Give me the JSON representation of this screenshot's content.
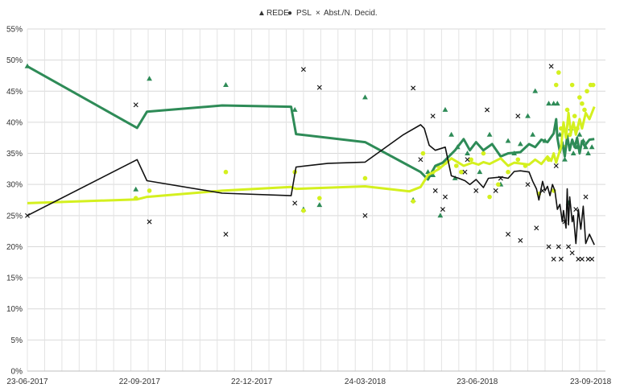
{
  "chart_data": {
    "type": "line",
    "title": "",
    "xlabel": "",
    "ylabel": "",
    "ylim": [
      0,
      55
    ],
    "xlim": [
      "2017-06-23",
      "2018-10-05"
    ],
    "yticks": [
      "0%",
      "5%",
      "10%",
      "15%",
      "20%",
      "25%",
      "30%",
      "35%",
      "40%",
      "45%",
      "50%",
      "55%"
    ],
    "xticks": [
      "23-06-2017",
      "22-09-2017",
      "22-12-2017",
      "24-03-2018",
      "23-06-2018",
      "23-09-2018"
    ],
    "grid": true,
    "legend_position": "top",
    "colors": {
      "REDE": "#2e8b57",
      "PSL": "#d4f01f",
      "Abst": "#111111"
    },
    "series": [
      {
        "name": "REDE",
        "trend": [
          [
            "2017-06-23",
            49.0
          ],
          [
            "2017-09-20",
            39.1
          ],
          [
            "2017-09-28",
            41.7
          ],
          [
            "2017-11-28",
            42.7
          ],
          [
            "2018-01-23",
            42.5
          ],
          [
            "2018-01-27",
            38.1
          ],
          [
            "2018-03-24",
            36.8
          ],
          [
            "2018-05-08",
            32.0
          ],
          [
            "2018-05-14",
            30.8
          ],
          [
            "2018-05-20",
            33.0
          ],
          [
            "2018-05-26",
            33.5
          ],
          [
            "2018-06-05",
            35.5
          ],
          [
            "2018-06-12",
            37.3
          ],
          [
            "2018-06-17",
            35.5
          ],
          [
            "2018-06-22",
            36.8
          ],
          [
            "2018-06-28",
            35.5
          ],
          [
            "2018-07-05",
            36.5
          ],
          [
            "2018-07-12",
            34.5
          ],
          [
            "2018-07-18",
            35.0
          ],
          [
            "2018-07-28",
            35.2
          ],
          [
            "2018-08-04",
            36.5
          ],
          [
            "2018-08-09",
            36.0
          ],
          [
            "2018-08-14",
            37.2
          ],
          [
            "2018-08-19",
            36.8
          ],
          [
            "2018-08-24",
            38.2
          ],
          [
            "2018-08-26",
            40.5
          ],
          [
            "2018-08-27",
            37.5
          ],
          [
            "2018-08-29",
            35.2
          ],
          [
            "2018-08-31",
            36.8
          ],
          [
            "2018-09-02",
            34.5
          ],
          [
            "2018-09-04",
            37.8
          ],
          [
            "2018-09-06",
            35.5
          ],
          [
            "2018-09-08",
            37.2
          ],
          [
            "2018-09-10",
            36.0
          ],
          [
            "2018-09-12",
            37.5
          ],
          [
            "2018-09-14",
            35.0
          ],
          [
            "2018-09-16",
            37.0
          ],
          [
            "2018-09-18",
            36.2
          ],
          [
            "2018-09-22",
            37.2
          ],
          [
            "2018-09-26",
            37.3
          ]
        ],
        "points": [
          [
            "2017-06-23",
            49.0
          ],
          [
            "2017-09-19",
            29.2
          ],
          [
            "2017-09-30",
            47.0
          ],
          [
            "2017-12-01",
            46.0
          ],
          [
            "2018-01-26",
            42.0
          ],
          [
            "2018-02-02",
            26.0
          ],
          [
            "2018-02-15",
            26.7
          ],
          [
            "2018-03-24",
            44.0
          ],
          [
            "2018-05-02",
            27.5
          ],
          [
            "2018-05-14",
            32.0
          ],
          [
            "2018-05-18",
            31.5
          ],
          [
            "2018-05-24",
            25.0
          ],
          [
            "2018-05-28",
            42.0
          ],
          [
            "2018-06-02",
            38.0
          ],
          [
            "2018-06-05",
            31.0
          ],
          [
            "2018-06-07",
            36.0
          ],
          [
            "2018-06-15",
            35.0
          ],
          [
            "2018-06-25",
            32.0
          ],
          [
            "2018-07-03",
            38.0
          ],
          [
            "2018-07-12",
            30.0
          ],
          [
            "2018-07-18",
            37.0
          ],
          [
            "2018-07-23",
            35.0
          ],
          [
            "2018-07-28",
            36.5
          ],
          [
            "2018-08-03",
            41.0
          ],
          [
            "2018-08-07",
            38.0
          ],
          [
            "2018-08-09",
            45.0
          ],
          [
            "2018-08-17",
            37.0
          ],
          [
            "2018-08-20",
            43.0
          ],
          [
            "2018-08-24",
            43.0
          ],
          [
            "2018-08-27",
            43.0
          ],
          [
            "2018-08-29",
            38.0
          ],
          [
            "2018-09-02",
            34.0
          ],
          [
            "2018-09-05",
            27.0
          ],
          [
            "2018-09-07",
            39.0
          ],
          [
            "2018-09-09",
            35.0
          ],
          [
            "2018-09-12",
            36.0
          ],
          [
            "2018-09-14",
            38.0
          ],
          [
            "2018-09-17",
            37.0
          ],
          [
            "2018-09-19",
            36.0
          ],
          [
            "2018-09-21",
            35.0
          ],
          [
            "2018-09-24",
            36.0
          ]
        ]
      },
      {
        "name": "PSL",
        "trend": [
          [
            "2017-06-23",
            27.0
          ],
          [
            "2017-09-20",
            27.6
          ],
          [
            "2017-09-28",
            28.0
          ],
          [
            "2017-11-28",
            29.0
          ],
          [
            "2018-01-23",
            29.6
          ],
          [
            "2018-01-27",
            29.3
          ],
          [
            "2018-03-24",
            29.7
          ],
          [
            "2018-04-29",
            28.9
          ],
          [
            "2018-05-08",
            29.6
          ],
          [
            "2018-05-14",
            31.5
          ],
          [
            "2018-05-23",
            32.5
          ],
          [
            "2018-06-02",
            34.2
          ],
          [
            "2018-06-12",
            33.0
          ],
          [
            "2018-06-19",
            33.5
          ],
          [
            "2018-06-24",
            33.2
          ],
          [
            "2018-06-28",
            33.6
          ],
          [
            "2018-07-03",
            33.3
          ],
          [
            "2018-07-12",
            34.2
          ],
          [
            "2018-07-18",
            33.0
          ],
          [
            "2018-07-23",
            33.5
          ],
          [
            "2018-08-04",
            33.2
          ],
          [
            "2018-08-09",
            34.0
          ],
          [
            "2018-08-14",
            33.3
          ],
          [
            "2018-08-19",
            34.5
          ],
          [
            "2018-08-22",
            33.8
          ],
          [
            "2018-08-24",
            35.0
          ],
          [
            "2018-08-26",
            33.5
          ],
          [
            "2018-08-28",
            34.8
          ],
          [
            "2018-08-30",
            36.0
          ],
          [
            "2018-09-01",
            40.0
          ],
          [
            "2018-09-03",
            37.5
          ],
          [
            "2018-09-05",
            41.5
          ],
          [
            "2018-09-07",
            38.2
          ],
          [
            "2018-09-09",
            40.0
          ],
          [
            "2018-09-11",
            38.0
          ],
          [
            "2018-09-14",
            40.5
          ],
          [
            "2018-09-16",
            39.0
          ],
          [
            "2018-09-19",
            41.5
          ],
          [
            "2018-09-22",
            40.5
          ],
          [
            "2018-09-26",
            42.5
          ]
        ],
        "points": [
          [
            "2017-09-19",
            27.8
          ],
          [
            "2017-09-30",
            29.0
          ],
          [
            "2017-12-01",
            32.0
          ],
          [
            "2018-01-26",
            32.0
          ],
          [
            "2018-02-02",
            25.8
          ],
          [
            "2018-02-15",
            27.8
          ],
          [
            "2018-03-24",
            31.0
          ],
          [
            "2018-05-02",
            27.3
          ],
          [
            "2018-05-10",
            35.0
          ],
          [
            "2018-05-18",
            32.0
          ],
          [
            "2018-05-22",
            33.0
          ],
          [
            "2018-05-28",
            33.5
          ],
          [
            "2018-06-06",
            33.0
          ],
          [
            "2018-06-10",
            32.0
          ],
          [
            "2018-06-18",
            34.0
          ],
          [
            "2018-06-28",
            35.0
          ],
          [
            "2018-07-03",
            28.0
          ],
          [
            "2018-07-10",
            30.0
          ],
          [
            "2018-07-18",
            32.0
          ],
          [
            "2018-07-26",
            34.0
          ],
          [
            "2018-08-01",
            33.0
          ],
          [
            "2018-08-12",
            28.5
          ],
          [
            "2018-08-20",
            34.0
          ],
          [
            "2018-08-24",
            29.0
          ],
          [
            "2018-08-26",
            46.0
          ],
          [
            "2018-08-28",
            48.0
          ],
          [
            "2018-08-30",
            39.0
          ],
          [
            "2018-09-02",
            36.0
          ],
          [
            "2018-09-04",
            42.0
          ],
          [
            "2018-09-06",
            38.0
          ],
          [
            "2018-09-08",
            46.0
          ],
          [
            "2018-09-10",
            41.0
          ],
          [
            "2018-09-12",
            39.0
          ],
          [
            "2018-09-14",
            44.0
          ],
          [
            "2018-09-16",
            43.0
          ],
          [
            "2018-09-18",
            42.0
          ],
          [
            "2018-09-20",
            45.0
          ],
          [
            "2018-09-23",
            46.0
          ],
          [
            "2018-09-25",
            46.0
          ]
        ]
      },
      {
        "name": "Abst./N. Decid.",
        "trend": [
          [
            "2017-06-23",
            25.0
          ],
          [
            "2017-09-20",
            34.0
          ],
          [
            "2017-09-28",
            30.6
          ],
          [
            "2017-11-28",
            28.6
          ],
          [
            "2018-01-23",
            28.2
          ],
          [
            "2018-01-27",
            32.8
          ],
          [
            "2018-02-22",
            33.4
          ],
          [
            "2018-03-24",
            33.6
          ],
          [
            "2018-04-24",
            38.0
          ],
          [
            "2018-05-08",
            39.6
          ],
          [
            "2018-05-11",
            39.0
          ],
          [
            "2018-05-15",
            36.3
          ],
          [
            "2018-05-20",
            35.5
          ],
          [
            "2018-05-28",
            36.0
          ],
          [
            "2018-06-02",
            31.4
          ],
          [
            "2018-06-08",
            31.0
          ],
          [
            "2018-06-13",
            30.6
          ],
          [
            "2018-06-17",
            30.0
          ],
          [
            "2018-06-22",
            30.8
          ],
          [
            "2018-06-28",
            29.5
          ],
          [
            "2018-07-02",
            31.0
          ],
          [
            "2018-07-12",
            31.2
          ],
          [
            "2018-07-18",
            31.0
          ],
          [
            "2018-07-23",
            32.1
          ],
          [
            "2018-07-28",
            32.2
          ],
          [
            "2018-08-04",
            32.0
          ],
          [
            "2018-08-07",
            30.5
          ],
          [
            "2018-08-10",
            29.3
          ],
          [
            "2018-08-12",
            27.5
          ],
          [
            "2018-08-15",
            30.5
          ],
          [
            "2018-08-17",
            29.0
          ],
          [
            "2018-08-19",
            29.7
          ],
          [
            "2018-08-21",
            28.2
          ],
          [
            "2018-08-23",
            30.0
          ],
          [
            "2018-08-25",
            29.0
          ],
          [
            "2018-08-27",
            26.0
          ],
          [
            "2018-08-29",
            26.8
          ],
          [
            "2018-08-31",
            24.0
          ],
          [
            "2018-09-01",
            25.8
          ],
          [
            "2018-09-03",
            23.0
          ],
          [
            "2018-09-04",
            29.3
          ],
          [
            "2018-09-05",
            23.5
          ],
          [
            "2018-09-06",
            28.0
          ],
          [
            "2018-09-08",
            24.0
          ],
          [
            "2018-09-09",
            25.0
          ],
          [
            "2018-09-11",
            20.5
          ],
          [
            "2018-09-13",
            26.0
          ],
          [
            "2018-09-15",
            22.8
          ],
          [
            "2018-09-17",
            26.5
          ],
          [
            "2018-09-19",
            20.5
          ],
          [
            "2018-09-22",
            22.0
          ],
          [
            "2018-09-26",
            20.3
          ]
        ],
        "points": [
          [
            "2017-06-23",
            25.0
          ],
          [
            "2017-09-19",
            42.8
          ],
          [
            "2017-09-30",
            24.0
          ],
          [
            "2017-12-01",
            22.0
          ],
          [
            "2018-01-26",
            27.0
          ],
          [
            "2018-02-02",
            48.5
          ],
          [
            "2018-02-15",
            45.6
          ],
          [
            "2018-03-24",
            25.0
          ],
          [
            "2018-05-02",
            45.5
          ],
          [
            "2018-05-08",
            34.0
          ],
          [
            "2018-05-18",
            41.0
          ],
          [
            "2018-05-20",
            29.0
          ],
          [
            "2018-05-26",
            26.0
          ],
          [
            "2018-05-28",
            28.0
          ],
          [
            "2018-06-13",
            32.0
          ],
          [
            "2018-06-15",
            34.0
          ],
          [
            "2018-06-22",
            29.0
          ],
          [
            "2018-07-01",
            42.0
          ],
          [
            "2018-07-08",
            29.0
          ],
          [
            "2018-07-12",
            31.0
          ],
          [
            "2018-07-18",
            22.0
          ],
          [
            "2018-07-26",
            41.0
          ],
          [
            "2018-07-28",
            21.0
          ],
          [
            "2018-08-03",
            30.0
          ],
          [
            "2018-08-10",
            23.0
          ],
          [
            "2018-08-15",
            29.0
          ],
          [
            "2018-08-20",
            20.0
          ],
          [
            "2018-08-22",
            49.0
          ],
          [
            "2018-08-24",
            18.0
          ],
          [
            "2018-08-26",
            33.0
          ],
          [
            "2018-08-28",
            20.0
          ],
          [
            "2018-08-30",
            18.0
          ],
          [
            "2018-09-02",
            24.0
          ],
          [
            "2018-09-05",
            20.0
          ],
          [
            "2018-09-08",
            19.0
          ],
          [
            "2018-09-11",
            26.0
          ],
          [
            "2018-09-13",
            18.0
          ],
          [
            "2018-09-16",
            18.0
          ],
          [
            "2018-09-19",
            28.0
          ],
          [
            "2018-09-21",
            18.0
          ],
          [
            "2018-09-24",
            18.0
          ]
        ]
      }
    ]
  },
  "legend": [
    {
      "symbol": "▲",
      "label": "REDE",
      "color": "#2e8b57"
    },
    {
      "symbol": "●",
      "label": "PSL",
      "color": "#d4f01f"
    },
    {
      "symbol": "×",
      "label": "Abst./N. Decid.",
      "color": "#111111"
    }
  ]
}
